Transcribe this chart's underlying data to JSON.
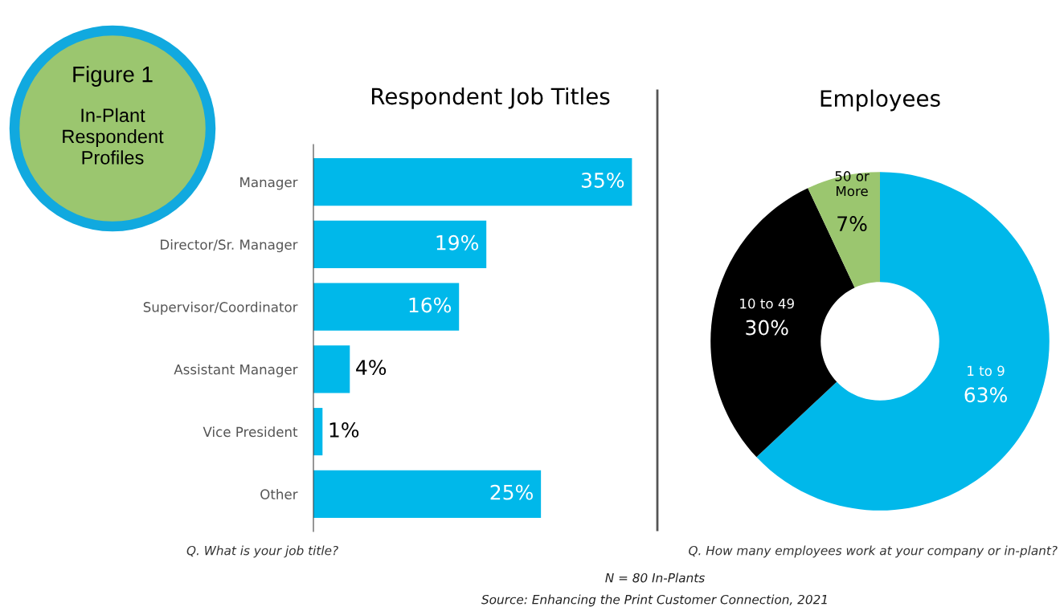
{
  "chart_data": [
    {
      "type": "bar",
      "orientation": "horizontal",
      "title": "Respondent Job Titles",
      "categories": [
        "Manager",
        "Director/Sr. Manager",
        "Supervisor/Coordinator",
        "Assistant Manager",
        "Vice President",
        "Other"
      ],
      "values": [
        35,
        19,
        16,
        4,
        1,
        25
      ],
      "color": "#00b8ea",
      "value_labels": [
        "35%",
        "19%",
        "16%",
        "4%",
        "1%",
        "25%"
      ],
      "annotations": [
        "Figure 1",
        "In-Plant\nRespondent\nProfiles",
        "Q. What is your job title?"
      ]
    },
    {
      "type": "donut",
      "title": "Employees",
      "categories": [
        "1 to 9",
        "10 to 49",
        "50 or\nMore"
      ],
      "values": [
        63,
        30,
        7
      ],
      "colors": [
        "#00b8ea",
        "#000000",
        "#9bc66f"
      ],
      "value_labels": [
        "63%",
        "30%",
        "7%"
      ],
      "annotations": [
        "Q. How many employees work at your company or in-plant?",
        "N = 80 In-Plants",
        "Source: Enhancing the Print Customer Connection, 2021"
      ]
    }
  ]
}
